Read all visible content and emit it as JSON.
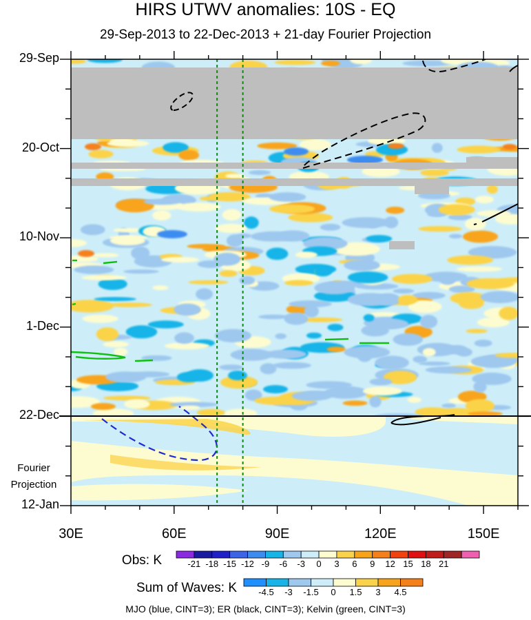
{
  "chart_data": {
    "type": "heatmap",
    "title": "HIRS UTWV anomalies: 10S - EQ",
    "subtitle": "29-Sep-2013 to 22-Dec-2013 + 21-day Fourier Projection",
    "x_axis": {
      "range": [
        30,
        160
      ],
      "ticks": [
        "30E",
        "60E",
        "90E",
        "120E",
        "150E"
      ],
      "tick_values": [
        30,
        60,
        90,
        120,
        150
      ]
    },
    "y_axis": {
      "ticks": [
        "29-Sep",
        "20-Oct",
        "10-Nov",
        "1-Dec",
        "22-Dec",
        "12-Jan"
      ],
      "tick_days": [
        0,
        21,
        42,
        63,
        84,
        105
      ],
      "direction": "downward"
    },
    "projection_label": [
      "Fourier",
      "Projection"
    ],
    "projection_start_day": 84,
    "reference_longitudes": [
      72.5,
      80
    ],
    "missing_data_bands_days": [
      [
        2,
        19
      ],
      [
        24,
        26
      ],
      [
        28,
        30
      ]
    ],
    "obs_colorbar": {
      "label": "Obs: K",
      "levels": [
        "-21",
        "-18",
        "-15",
        "-12",
        "-9",
        "-6",
        "-3",
        "0",
        "3",
        "6",
        "9",
        "12",
        "15",
        "18",
        "21"
      ],
      "colors": [
        "#8a2be2",
        "#1a1aa0",
        "#2020c8",
        "#3c64e6",
        "#3c8cf0",
        "#17b4e8",
        "#9fc8ef",
        "#cdeef8",
        "#fdfcd0",
        "#fbd34a",
        "#f8a41a",
        "#f5801a",
        "#f2420f",
        "#e01010",
        "#c01c1c",
        "#a02626",
        "#f060b0"
      ]
    },
    "waves_colorbar": {
      "label": "Sum of Waves: K",
      "levels": [
        "-4.5",
        "-3",
        "-1.5",
        "0",
        "1.5",
        "3",
        "4.5"
      ],
      "colors": [
        "#1e90ff",
        "#17b4e8",
        "#9fc8ef",
        "#cdeef8",
        "#fdfcd0",
        "#fbd34a",
        "#f8a41a",
        "#f5801a"
      ]
    },
    "legend_note": "MJO (blue, CINT=3); ER (black, CINT=3); Kelvin (green, CINT=3)"
  }
}
